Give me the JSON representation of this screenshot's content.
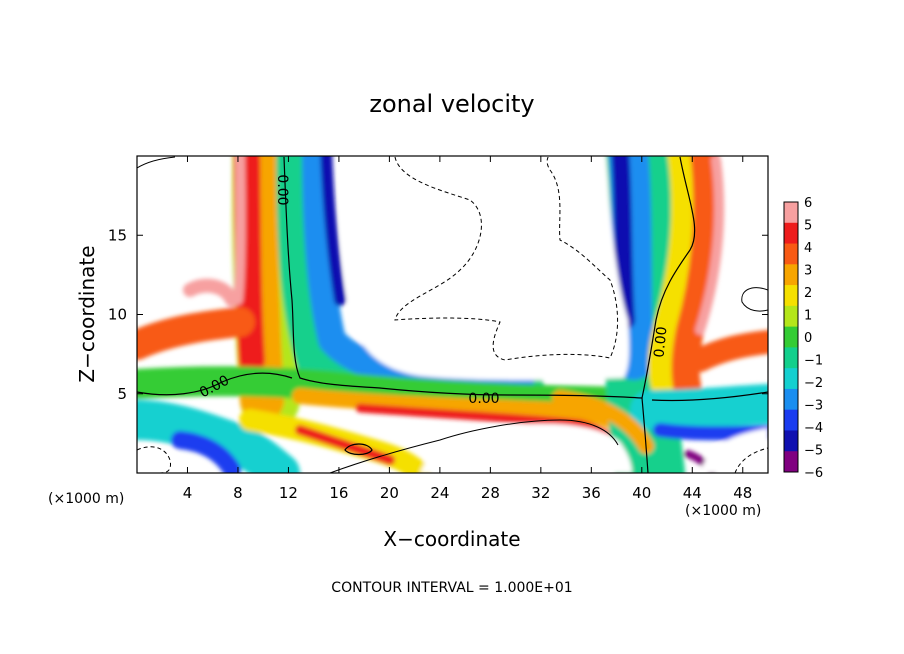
{
  "chart_data": {
    "type": "heatmap",
    "title": "zonal velocity",
    "xlabel": "X−coordinate",
    "ylabel": "Z−coordinate",
    "x_unit_label": "(×1000 m)",
    "x_unit_label_right": "(×1000 m)",
    "xlim": [
      0,
      50
    ],
    "ylim": [
      0,
      20
    ],
    "x_ticks": [
      4,
      8,
      12,
      16,
      20,
      24,
      28,
      32,
      36,
      40,
      44,
      48
    ],
    "y_ticks": [
      5,
      10,
      15
    ],
    "colorbar": {
      "levels": [
        6,
        5,
        4,
        3,
        2,
        1,
        0,
        -1,
        -2,
        -3,
        -4,
        -5,
        -6
      ],
      "labels": [
        "6",
        "5",
        "4",
        "3",
        "2",
        "1",
        "0",
        "−1",
        "−2",
        "−3",
        "−4",
        "−5",
        "−6"
      ],
      "colors": [
        "#f7a0a0",
        "#ee1c1c",
        "#f85a14",
        "#f7a500",
        "#f5e000",
        "#b4e61a",
        "#34cc34",
        "#12d08c",
        "#14d0d0",
        "#1a8ef0",
        "#1a3cf0",
        "#1010b0",
        "#800080"
      ]
    },
    "contour_labels": [
      "0.00",
      "0.00",
      "0.00",
      "0.00"
    ],
    "contour_interval_text": "CONTOUR INTERVAL = 1.000E+01"
  }
}
